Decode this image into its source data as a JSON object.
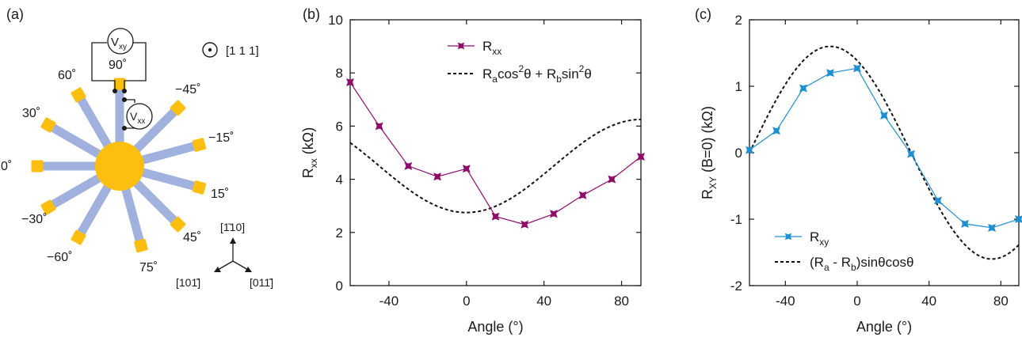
{
  "panel_labels": {
    "a": "(a)",
    "b": "(b)",
    "c": "(c)"
  },
  "colors": {
    "arm": "#9fb1dc",
    "pad": "#fdbf0f",
    "series_b": "#8e0d6b",
    "series_c": "#1e90d2",
    "fit": "#111111"
  },
  "device": {
    "arm_angles": [
      90,
      60,
      30,
      0,
      -30,
      -60,
      75,
      45,
      15,
      -15,
      -45
    ],
    "arm_labels": [
      {
        "text": "90˚"
      },
      {
        "text": "60˚"
      },
      {
        "text": "30˚"
      },
      {
        "text": "0˚"
      },
      {
        "text": "−30˚"
      },
      {
        "text": "−60˚"
      },
      {
        "text": "75˚"
      },
      {
        "text": "45˚"
      },
      {
        "text": "15˚"
      },
      {
        "text": "−15˚"
      },
      {
        "text": "−45˚"
      }
    ],
    "vxy_label": "V",
    "vxy_sub": "xy",
    "vxx_label": "V",
    "vxx_sub": "xx",
    "direction_111": "[1 1 1]",
    "axis_up": "[1̄10]",
    "axis_left": "[101̄]",
    "axis_right": "[011̄]"
  },
  "chart_data": [
    {
      "type": "line",
      "panel": "b",
      "xlabel": "Angle (°)",
      "ylabel": "R",
      "ylabel_sub": "xx",
      "ylabel_unit": " (kΩ)",
      "xlim": [
        -60,
        90
      ],
      "ylim": [
        0,
        10
      ],
      "xticks": [
        -40,
        0,
        40,
        80
      ],
      "yticks": [
        0,
        2,
        4,
        6,
        8,
        10
      ],
      "legend": [
        {
          "text": "R",
          "sub": "xx",
          "rest": ""
        },
        {
          "text": "R",
          "sub": "a",
          "rest": "cos",
          "sup": "2",
          "rest2": "θ + R",
          "sub2": "b",
          "rest3": "sin",
          "sup2": "2",
          "rest4": "θ"
        }
      ],
      "series": [
        {
          "name": "Rxx",
          "x": [
            -60,
            -45,
            -30,
            -15,
            0,
            15,
            30,
            45,
            60,
            75,
            90
          ],
          "y": [
            7.65,
            6.0,
            4.5,
            4.1,
            4.4,
            2.6,
            2.3,
            2.7,
            3.4,
            4.0,
            4.85
          ]
        }
      ],
      "fit": {
        "Ra": 2.75,
        "Rb": 6.25
      }
    },
    {
      "type": "line",
      "panel": "c",
      "xlabel": "Angle (°)",
      "ylabel": "R",
      "ylabel_sub": "XY",
      "ylabel_unit": " (B=0) (kΩ)",
      "xlim": [
        -60,
        90
      ],
      "ylim": [
        -2,
        2
      ],
      "xticks": [
        -40,
        0,
        40,
        80
      ],
      "yticks": [
        -2,
        -1,
        0,
        1,
        2
      ],
      "legend": [
        {
          "text": "R",
          "sub": "xy",
          "rest": ""
        },
        {
          "text": "(R",
          "sub": "a",
          "rest": " - R",
          "sub2": "b",
          "rest2": ")sinθcosθ"
        }
      ],
      "series": [
        {
          "name": "Rxy",
          "x": [
            -60,
            -45,
            -30,
            -15,
            0,
            15,
            30,
            45,
            60,
            75,
            90
          ],
          "y": [
            0.04,
            0.33,
            0.97,
            1.2,
            1.27,
            0.56,
            -0.02,
            -0.72,
            -1.07,
            -1.13,
            -1.0
          ]
        }
      ],
      "fit": {
        "amplitude": -3.2
      }
    }
  ]
}
